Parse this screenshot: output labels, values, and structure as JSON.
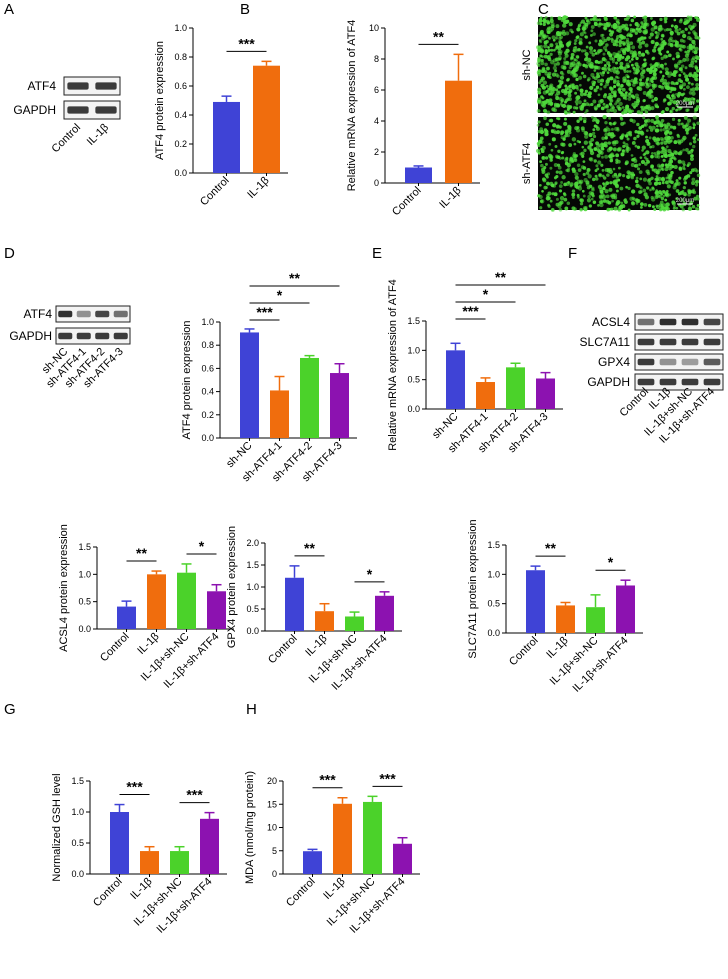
{
  "panel_labels": [
    "A",
    "B",
    "C",
    "D",
    "E",
    "F",
    "G",
    "H"
  ],
  "colors": {
    "blue": "#3F43D6",
    "orange": "#F06D0D",
    "green": "#4BD22A",
    "purple": "#8C12B0",
    "cell_green": "#4FD93C"
  },
  "blots": {
    "A": {
      "proteins": [
        "ATF4",
        "GAPDH"
      ],
      "lanes": [
        "Control",
        "IL-1β"
      ]
    },
    "D": {
      "proteins": [
        "ATF4",
        "GAPDH"
      ],
      "lanes": [
        "sh-NC",
        "sh-ATF4-1",
        "sh-ATF4-2",
        "sh-ATF4-3"
      ]
    },
    "F": {
      "proteins": [
        "ACSL4",
        "SLC7A11",
        "GPX4",
        "GAPDH"
      ],
      "lanes": [
        "Control",
        "IL-1β",
        "IL-1β+sh-NC",
        "IL-1β+sh-ATF4"
      ]
    }
  },
  "images_C": {
    "rows": [
      "sh-NC",
      "sh-ATF4"
    ],
    "scale_bar": "200μm"
  },
  "chart_data": [
    {
      "id": "A_bar",
      "type": "bar",
      "categories": [
        "Control",
        "IL-1β"
      ],
      "values": [
        0.49,
        0.74
      ],
      "errors": [
        0.04,
        0.03
      ],
      "ylabel": "ATF4 protein expression",
      "ylim": [
        0,
        1.0
      ],
      "yticks": [
        "0.0",
        "0.2",
        "0.4",
        "0.6",
        "0.8",
        "1.0"
      ],
      "significance": [
        {
          "from": 0,
          "to": 1,
          "label": "***"
        }
      ]
    },
    {
      "id": "B_bar",
      "type": "bar",
      "categories": [
        "Control",
        "IL-1β"
      ],
      "values": [
        1.0,
        6.6
      ],
      "errors": [
        0.1,
        1.7
      ],
      "ylabel": "Relative mRNA expression of ATF4",
      "ylim": [
        0,
        10
      ],
      "yticks": [
        "0",
        "2",
        "4",
        "6",
        "8",
        "10"
      ],
      "significance": [
        {
          "from": 0,
          "to": 1,
          "label": "**"
        }
      ]
    },
    {
      "id": "D_bar",
      "type": "bar",
      "categories": [
        "sh-NC",
        "sh-ATF4-1",
        "sh-ATF4-2",
        "sh-ATF4-3"
      ],
      "values": [
        0.91,
        0.41,
        0.69,
        0.56
      ],
      "errors": [
        0.03,
        0.12,
        0.02,
        0.08
      ],
      "ylabel": "ATF4 protein expression",
      "ylim": [
        0,
        1.0
      ],
      "yticks": [
        "0.0",
        "0.2",
        "0.4",
        "0.6",
        "0.8",
        "1.0"
      ],
      "significance": [
        {
          "from": 0,
          "to": 1,
          "label": "***"
        },
        {
          "from": 0,
          "to": 2,
          "label": "*"
        },
        {
          "from": 0,
          "to": 3,
          "label": "**"
        }
      ]
    },
    {
      "id": "E_bar",
      "type": "bar",
      "categories": [
        "sh-NC",
        "sh-ATF4-1",
        "sh-ATF4-2",
        "sh-ATF4-3"
      ],
      "values": [
        1.0,
        0.46,
        0.71,
        0.52
      ],
      "errors": [
        0.12,
        0.07,
        0.07,
        0.1
      ],
      "ylabel": "Relative mRNA expression of ATF4",
      "ylim": [
        0,
        1.5
      ],
      "yticks": [
        "0.0",
        "0.5",
        "1.0",
        "1.5"
      ],
      "significance": [
        {
          "from": 0,
          "to": 1,
          "label": "***"
        },
        {
          "from": 0,
          "to": 2,
          "label": "*"
        },
        {
          "from": 0,
          "to": 3,
          "label": "**"
        }
      ]
    },
    {
      "id": "F_acsl4",
      "type": "bar",
      "categories": [
        "Control",
        "IL-1β",
        "IL-1β+sh-NC",
        "IL-1β+sh-ATF4"
      ],
      "values": [
        0.41,
        1.0,
        1.03,
        0.69
      ],
      "errors": [
        0.1,
        0.06,
        0.16,
        0.12
      ],
      "ylabel": "ACSL4 protein expression",
      "ylim": [
        0,
        1.5
      ],
      "yticks": [
        "0.0",
        "0.5",
        "1.0",
        "1.5"
      ],
      "significance": [
        {
          "from": 0,
          "to": 1,
          "label": "**"
        },
        {
          "from": 2,
          "to": 3,
          "label": "*"
        }
      ]
    },
    {
      "id": "F_gpx4",
      "type": "bar",
      "categories": [
        "Control",
        "IL-1β",
        "IL-1β+sh-NC",
        "IL-1β+sh-ATF4"
      ],
      "values": [
        1.21,
        0.45,
        0.33,
        0.8
      ],
      "errors": [
        0.27,
        0.17,
        0.1,
        0.09
      ],
      "ylabel": "GPX4 protein expression",
      "ylim": [
        0,
        2.0
      ],
      "yticks": [
        "0.0",
        "0.5",
        "1.0",
        "1.5",
        "2.0"
      ],
      "significance": [
        {
          "from": 0,
          "to": 1,
          "label": "**"
        },
        {
          "from": 2,
          "to": 3,
          "label": "*"
        }
      ]
    },
    {
      "id": "F_slc7a11",
      "type": "bar",
      "categories": [
        "Control",
        "IL-1β",
        "IL-1β+sh-NC",
        "IL-1β+sh-ATF4"
      ],
      "values": [
        1.07,
        0.47,
        0.44,
        0.81
      ],
      "errors": [
        0.07,
        0.05,
        0.21,
        0.09
      ],
      "ylabel": "SLC7A11 protein expression",
      "ylim": [
        0,
        1.5
      ],
      "yticks": [
        "0.0",
        "0.5",
        "1.0",
        "1.5"
      ],
      "significance": [
        {
          "from": 0,
          "to": 1,
          "label": "**"
        },
        {
          "from": 2,
          "to": 3,
          "label": "*"
        }
      ]
    },
    {
      "id": "G_bar",
      "type": "bar",
      "categories": [
        "Control",
        "IL-1β",
        "IL-1β+sh-NC",
        "IL-1β+sh-ATF4"
      ],
      "values": [
        1.0,
        0.37,
        0.37,
        0.89
      ],
      "errors": [
        0.12,
        0.07,
        0.07,
        0.1
      ],
      "ylabel": "Normalized GSH level",
      "ylim": [
        0,
        1.5
      ],
      "yticks": [
        "0.0",
        "0.5",
        "1.0",
        "1.5"
      ],
      "significance": [
        {
          "from": 0,
          "to": 1,
          "label": "***"
        },
        {
          "from": 2,
          "to": 3,
          "label": "***"
        }
      ]
    },
    {
      "id": "H_bar",
      "type": "bar",
      "categories": [
        "Control",
        "IL-1β",
        "IL-1β+sh-NC",
        "IL-1β+sh-ATF4"
      ],
      "values": [
        4.9,
        15.1,
        15.5,
        6.5
      ],
      "errors": [
        0.4,
        1.3,
        1.2,
        1.3
      ],
      "ylabel": "MDA (nmol/mg protein)",
      "ylim": [
        0,
        20
      ],
      "yticks": [
        "0",
        "5",
        "10",
        "15",
        "20"
      ],
      "significance": [
        {
          "from": 0,
          "to": 1,
          "label": "***"
        },
        {
          "from": 2,
          "to": 3,
          "label": "***"
        }
      ]
    }
  ]
}
